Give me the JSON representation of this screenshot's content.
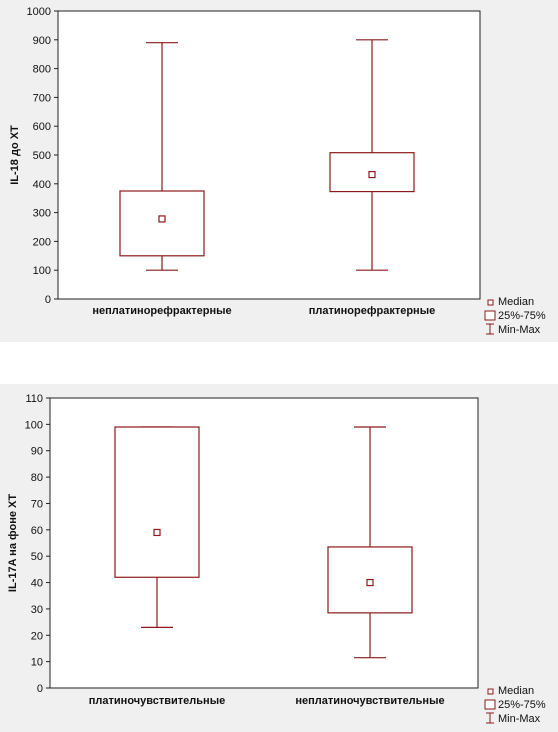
{
  "chart_data": [
    {
      "type": "box",
      "ylabel": "IL-18 до ХТ",
      "ylim": [
        0,
        1000
      ],
      "yticks": [
        0,
        100,
        200,
        300,
        400,
        500,
        600,
        700,
        800,
        900,
        1000
      ],
      "categories": [
        "неплатинорефрактерные",
        "платинорефрактерные"
      ],
      "boxes": [
        {
          "category": "неплатинорефрактерные",
          "median": 278,
          "q1": 150,
          "q3": 375,
          "min": 100,
          "max": 890
        },
        {
          "category": "платинорефрактерные",
          "median": 432,
          "q1": 373,
          "q3": 508,
          "min": 100,
          "max": 900
        }
      ],
      "legend": [
        "Median",
        "25%-75%",
        "Min-Max"
      ],
      "grid": false,
      "color": "#8b1a1a"
    },
    {
      "type": "box",
      "ylabel": "IL-17A на фоне ХТ",
      "ylim": [
        0,
        110
      ],
      "yticks": [
        0,
        10,
        20,
        30,
        40,
        50,
        60,
        70,
        80,
        90,
        100,
        110
      ],
      "categories": [
        "платиночувствительные",
        "неплатиночувствительные"
      ],
      "boxes": [
        {
          "category": "платиночувствительные",
          "median": 59,
          "q1": 42,
          "q3": 99,
          "min": 23,
          "max": 99
        },
        {
          "category": "неплатиночувствительные",
          "median": 40,
          "q1": 28.5,
          "q3": 53.5,
          "min": 11.5,
          "max": 99
        }
      ],
      "legend": [
        "Median",
        "25%-75%",
        "Min-Max"
      ],
      "grid": false,
      "color": "#8b1a1a"
    }
  ]
}
